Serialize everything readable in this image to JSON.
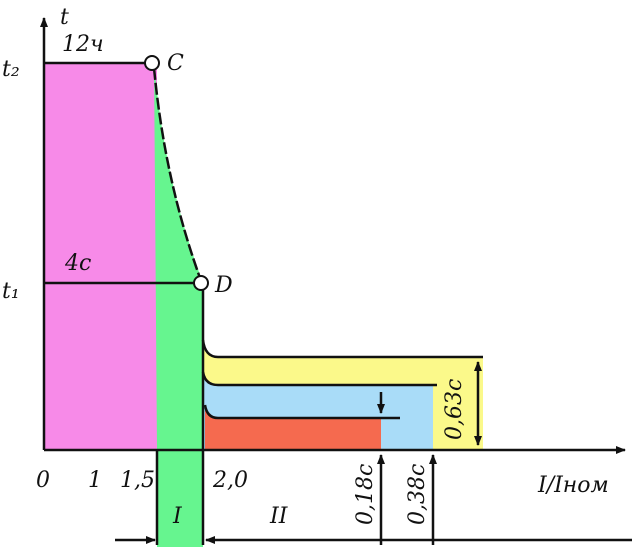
{
  "axes": {
    "y_label": "t",
    "x_label": "I/Iном",
    "x_ticks": [
      "0",
      "1",
      "1,5",
      "2,0"
    ]
  },
  "levels": {
    "t2": "t₂",
    "t1": "t₁",
    "t2_note": "12ч",
    "t1_note": "4с"
  },
  "points": {
    "c": "C",
    "d": "D"
  },
  "zones": {
    "zone_1": "I",
    "zone_2": "II"
  },
  "times": {
    "short": "0,18с",
    "medium": "0,38с",
    "long": "0,63с"
  }
}
